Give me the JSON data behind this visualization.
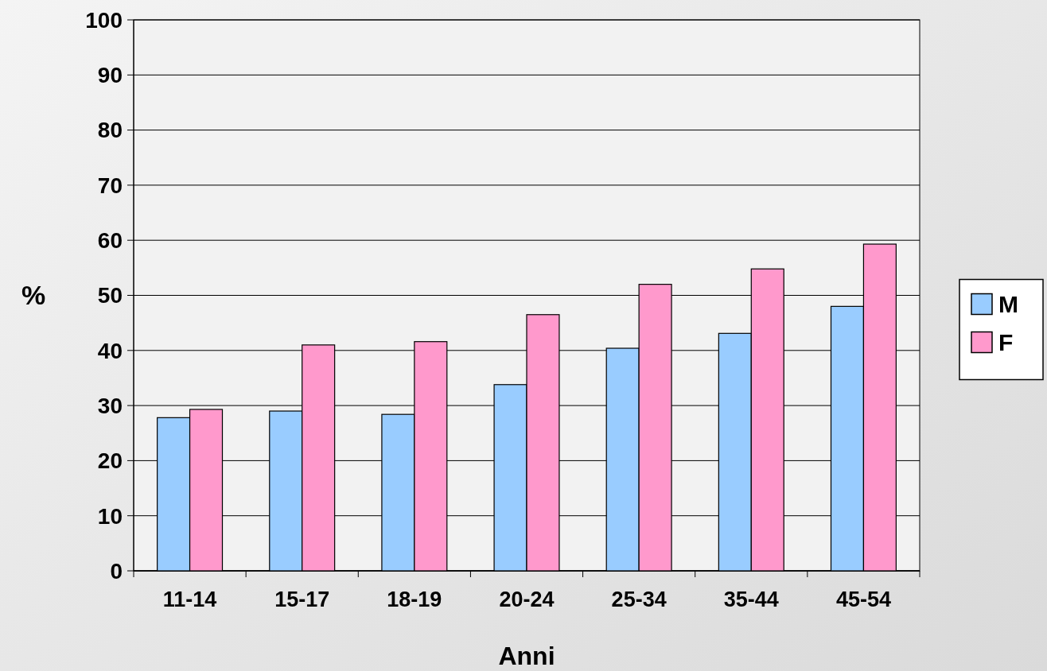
{
  "chart_data": {
    "type": "bar",
    "xlabel": "Anni",
    "ylabel": "%",
    "categories": [
      "11-14",
      "15-17",
      "18-19",
      "20-24",
      "25-34",
      "35-44",
      "45-54"
    ],
    "series": [
      {
        "name": "M",
        "color": "#99ccff",
        "values": [
          27.8,
          29,
          28.4,
          33.8,
          40.4,
          43.1,
          48
        ]
      },
      {
        "name": "F",
        "color": "#ff99cc",
        "values": [
          29.3,
          41,
          41.6,
          46.5,
          52,
          54.8,
          59.3
        ]
      }
    ],
    "ylim": [
      0,
      100
    ],
    "yticks": [
      0,
      10,
      20,
      30,
      40,
      50,
      60,
      70,
      80,
      90,
      100
    ],
    "grid": "y",
    "legend": "right"
  }
}
